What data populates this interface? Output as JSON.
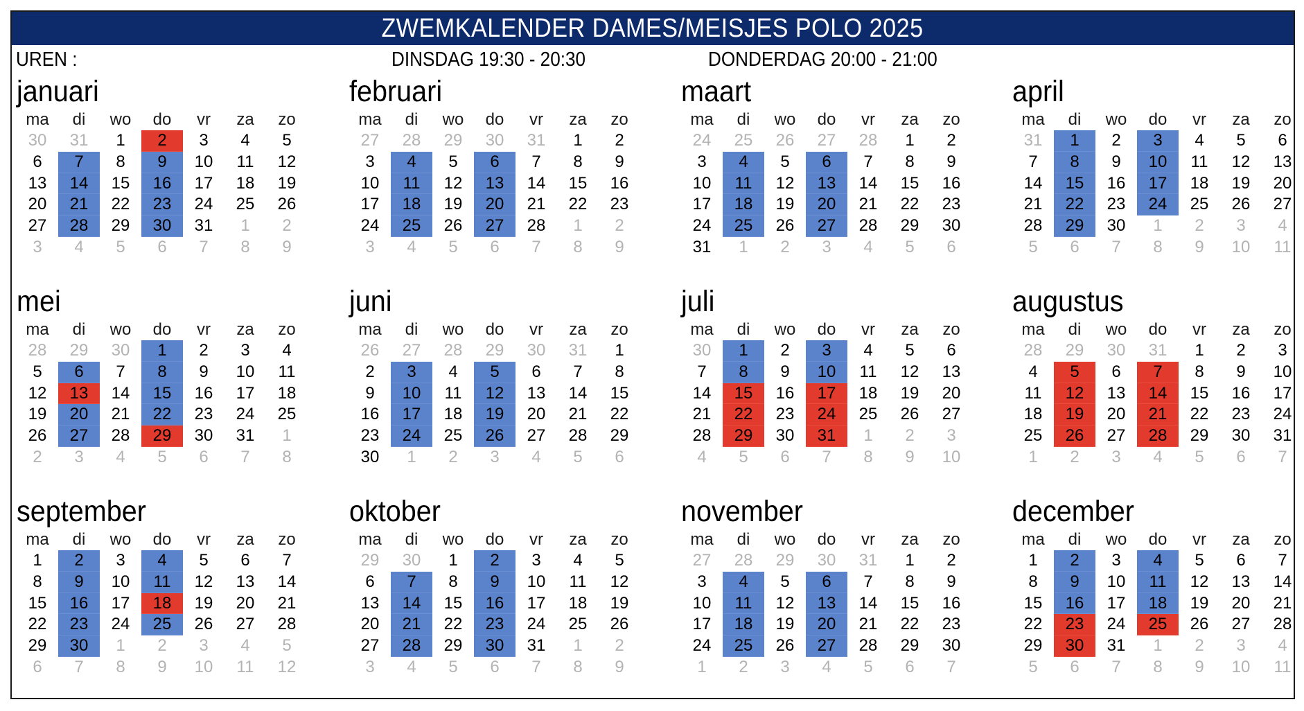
{
  "header": {
    "title": "ZWEMKALENDER DAMES/MEISJES POLO 2025",
    "hours_label": "UREN :",
    "tuesday_hours": "DINSDAG 19:30 - 20:30",
    "thursday_hours": "DONDERDAG 20:00 - 21:00"
  },
  "colors": {
    "title_bg": "#0d2a6b",
    "blue": "#5b83cc",
    "red": "#e23a2c",
    "other_month": "#b3b3b3"
  },
  "weekdays": [
    "ma",
    "di",
    "wo",
    "do",
    "vr",
    "za",
    "zo"
  ],
  "months": [
    {
      "name": "januari",
      "first_index": 2,
      "days": 31,
      "prev_start": 30,
      "blue": [
        7,
        9,
        14,
        16,
        21,
        23,
        28,
        30
      ],
      "red": [
        2
      ]
    },
    {
      "name": "februari",
      "first_index": 5,
      "days": 28,
      "prev_start": 27,
      "blue": [
        4,
        6,
        11,
        13,
        18,
        20,
        25,
        27
      ],
      "red": []
    },
    {
      "name": "maart",
      "first_index": 5,
      "days": 31,
      "prev_start": 24,
      "blue": [
        4,
        6,
        11,
        13,
        18,
        20,
        25,
        27
      ],
      "red": []
    },
    {
      "name": "april",
      "first_index": 1,
      "days": 30,
      "prev_start": 31,
      "blue": [
        1,
        3,
        8,
        10,
        15,
        17,
        22,
        24,
        29
      ],
      "red": []
    },
    {
      "name": "mei",
      "first_index": 3,
      "days": 31,
      "prev_start": 28,
      "blue": [
        1,
        6,
        8,
        15,
        20,
        22,
        27
      ],
      "red": [
        13,
        29
      ]
    },
    {
      "name": "juni",
      "first_index": 6,
      "days": 30,
      "prev_start": 26,
      "blue": [
        3,
        5,
        10,
        12,
        17,
        19,
        24,
        26
      ],
      "red": []
    },
    {
      "name": "juli",
      "first_index": 1,
      "days": 31,
      "prev_start": 30,
      "blue": [
        1,
        3,
        8,
        10
      ],
      "red": [
        15,
        17,
        22,
        24,
        29,
        31
      ]
    },
    {
      "name": "augustus",
      "first_index": 4,
      "days": 31,
      "prev_start": 28,
      "blue": [],
      "red": [
        5,
        7,
        12,
        14,
        19,
        21,
        26,
        28
      ]
    },
    {
      "name": "september",
      "first_index": 0,
      "days": 30,
      "prev_start": 1,
      "blue": [
        2,
        4,
        9,
        11,
        16,
        23,
        25,
        30
      ],
      "red": [
        18
      ]
    },
    {
      "name": "oktober",
      "first_index": 2,
      "days": 31,
      "prev_start": 29,
      "blue": [
        2,
        7,
        9,
        14,
        16,
        21,
        23,
        28,
        30
      ],
      "red": []
    },
    {
      "name": "november",
      "first_index": 5,
      "days": 30,
      "prev_start": 27,
      "blue": [
        4,
        6,
        11,
        13,
        18,
        20,
        25,
        27
      ],
      "red": []
    },
    {
      "name": "december",
      "first_index": 0,
      "days": 31,
      "prev_start": 1,
      "blue": [
        2,
        4,
        9,
        11,
        16,
        18
      ],
      "red": [
        23,
        25,
        30
      ]
    }
  ]
}
